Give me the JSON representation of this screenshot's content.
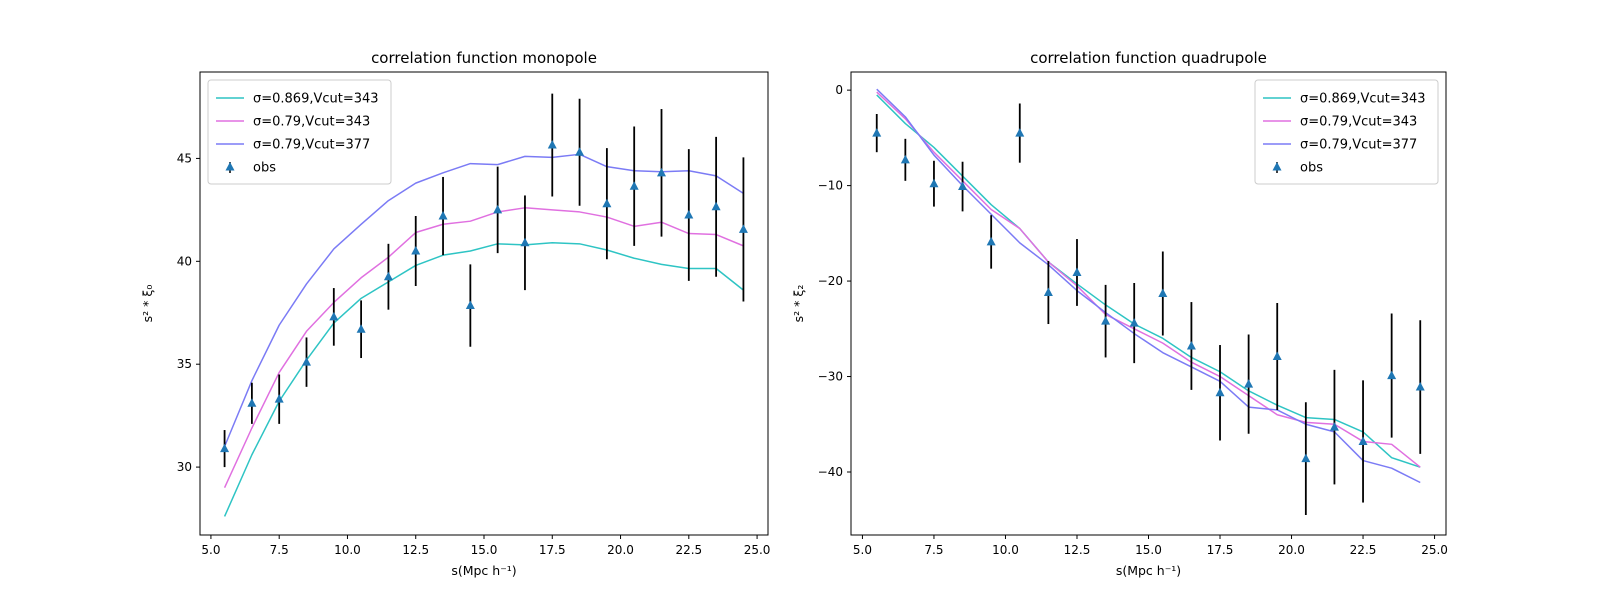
{
  "chart_data": [
    {
      "type": "line",
      "title": "correlation function monopole",
      "xlabel": "s(Mpc h⁻¹)",
      "ylabel": "s² * ξ₀",
      "xlim": [
        4.6,
        25.4
      ],
      "ylim": [
        26.7,
        49.2
      ],
      "xticks": [
        "5.0",
        "7.5",
        "10.0",
        "12.5",
        "15.0",
        "17.5",
        "20.0",
        "22.5",
        "25.0"
      ],
      "xtick_values": [
        5,
        7.5,
        10,
        12.5,
        15,
        17.5,
        20,
        22.5,
        25
      ],
      "yticks": [
        "30",
        "35",
        "40",
        "45"
      ],
      "ytick_values": [
        30,
        35,
        40,
        45
      ],
      "grid": false,
      "legend": "upper left",
      "x": [
        5.5,
        6.5,
        7.5,
        8.5,
        9.5,
        10.5,
        11.5,
        12.5,
        13.5,
        14.5,
        15.5,
        16.5,
        17.5,
        18.5,
        19.5,
        20.5,
        21.5,
        22.5,
        23.5,
        24.5
      ],
      "series": [
        {
          "name": "σ=0.869,Vcut=343",
          "color": "#2ec4c4",
          "values": [
            27.6,
            30.6,
            33.2,
            35.2,
            37.0,
            38.2,
            39.0,
            39.8,
            40.3,
            40.5,
            40.85,
            40.8,
            40.9,
            40.85,
            40.55,
            40.15,
            39.85,
            39.65,
            39.65,
            38.6
          ]
        },
        {
          "name": "σ=0.79,Vcut=343",
          "color": "#e070e0",
          "values": [
            29.0,
            31.9,
            34.6,
            36.6,
            38.0,
            39.2,
            40.2,
            41.4,
            41.8,
            41.95,
            42.4,
            42.6,
            42.5,
            42.4,
            42.15,
            41.7,
            41.9,
            41.35,
            41.3,
            40.75
          ]
        },
        {
          "name": "σ=0.79,Vcut=377",
          "color": "#7b7bf5",
          "values": [
            31.0,
            34.2,
            36.9,
            38.9,
            40.6,
            41.8,
            42.95,
            43.8,
            44.3,
            44.75,
            44.7,
            45.1,
            45.05,
            45.2,
            44.6,
            44.4,
            44.35,
            44.4,
            44.15,
            43.3
          ]
        }
      ],
      "observations": {
        "name": "obs",
        "color": "#1f77b4",
        "y": [
          30.9,
          33.1,
          33.3,
          35.1,
          37.3,
          36.7,
          39.25,
          40.5,
          42.2,
          37.85,
          42.5,
          40.9,
          45.65,
          45.3,
          42.8,
          43.65,
          44.3,
          42.25,
          42.65,
          41.55
        ],
        "yerr": [
          0.9,
          1.0,
          1.2,
          1.2,
          1.4,
          1.4,
          1.6,
          1.7,
          1.9,
          2.0,
          2.1,
          2.3,
          2.5,
          2.6,
          2.7,
          2.9,
          3.1,
          3.2,
          3.4,
          3.5
        ]
      }
    },
    {
      "type": "line",
      "title": "correlation function quadrupole",
      "xlabel": "s(Mpc h⁻¹)",
      "ylabel": "s² * ξ₂",
      "xlim": [
        4.6,
        25.4
      ],
      "ylim": [
        -46.6,
        1.9
      ],
      "xticks": [
        "5.0",
        "7.5",
        "10.0",
        "12.5",
        "15.0",
        "17.5",
        "20.0",
        "22.5",
        "25.0"
      ],
      "xtick_values": [
        5,
        7.5,
        10,
        12.5,
        15,
        17.5,
        20,
        22.5,
        25
      ],
      "yticks": [
        "0",
        "−10",
        "−20",
        "−30",
        "−40"
      ],
      "ytick_values": [
        0,
        -10,
        -20,
        -30,
        -40
      ],
      "grid": false,
      "legend": "upper right",
      "x": [
        5.5,
        6.5,
        7.5,
        8.5,
        9.5,
        10.5,
        11.5,
        12.5,
        13.5,
        14.5,
        15.5,
        16.5,
        17.5,
        18.5,
        19.5,
        20.5,
        21.5,
        22.5,
        23.5,
        24.5
      ],
      "series": [
        {
          "name": "σ=0.869,Vcut=343",
          "color": "#2ec4c4",
          "values": [
            -0.5,
            -3.5,
            -6.0,
            -9.0,
            -12.0,
            -14.5,
            -18.0,
            -20.3,
            -22.5,
            -24.5,
            -26.0,
            -28.0,
            -29.5,
            -31.5,
            -33.0,
            -34.3,
            -34.5,
            -35.8,
            -38.5,
            -39.5
          ]
        },
        {
          "name": "σ=0.79,Vcut=343",
          "color": "#e070e0",
          "values": [
            -0.2,
            -3.0,
            -6.5,
            -9.5,
            -12.5,
            -14.5,
            -18.0,
            -20.5,
            -23.5,
            -25.0,
            -26.5,
            -28.5,
            -30.0,
            -32.0,
            -34.0,
            -34.8,
            -35.0,
            -36.8,
            -37.1,
            -39.5
          ]
        },
        {
          "name": "σ=0.79,Vcut=377",
          "color": "#7b7bf5",
          "values": [
            0.1,
            -2.8,
            -6.8,
            -10.0,
            -13.0,
            -16.0,
            -18.3,
            -21.0,
            -23.3,
            -25.5,
            -27.5,
            -29.0,
            -30.5,
            -33.2,
            -33.5,
            -35.0,
            -35.8,
            -38.8,
            -39.6,
            -41.1
          ]
        }
      ],
      "observations": {
        "name": "obs",
        "color": "#1f77b4",
        "y": [
          -4.5,
          -7.3,
          -9.8,
          -10.1,
          -15.9,
          -4.5,
          -21.2,
          -19.1,
          -24.2,
          -24.4,
          -21.3,
          -26.8,
          -31.7,
          -30.8,
          -27.9,
          -38.6,
          -35.3,
          -36.8,
          -29.9,
          -31.1
        ],
        "yerr": [
          2.0,
          2.2,
          2.4,
          2.6,
          2.8,
          3.1,
          3.3,
          3.5,
          3.8,
          4.2,
          4.4,
          4.6,
          5.0,
          5.2,
          5.6,
          5.9,
          6.0,
          6.4,
          6.5,
          7.0
        ]
      }
    }
  ]
}
